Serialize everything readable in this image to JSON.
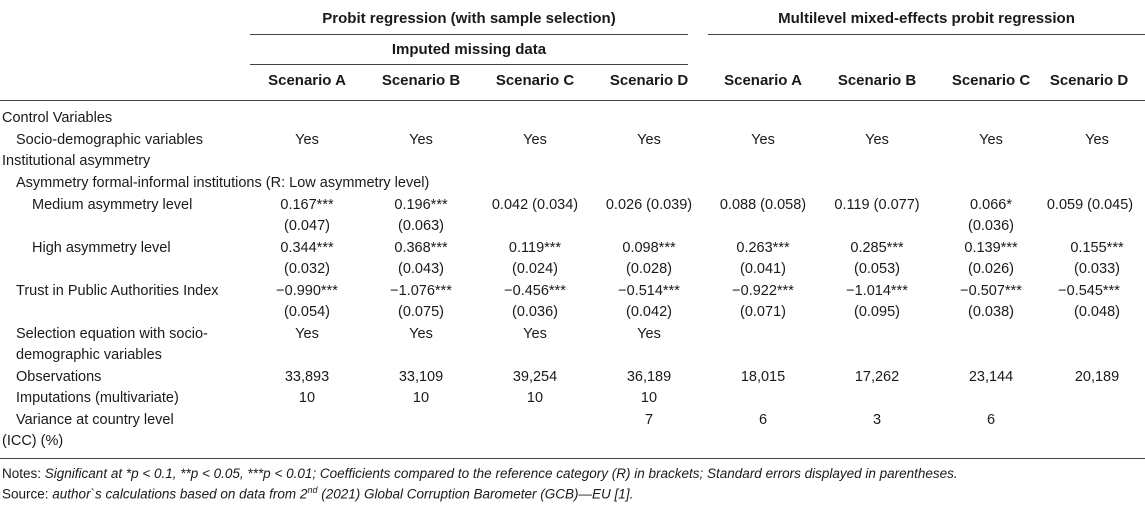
{
  "header": {
    "group1": "Probit regression (with sample selection)",
    "group2": "Multilevel mixed-effects probit regression",
    "subgroup1": "Imputed missing data",
    "scenarios": [
      "Scenario A",
      "Scenario B",
      "Scenario C",
      "Scenario D",
      "Scenario A",
      "Scenario B",
      "Scenario C",
      "Scenario D"
    ]
  },
  "rows": {
    "control_variables": "Control Variables",
    "socio_demo": {
      "label": "Socio-demographic variables",
      "values": [
        "Yes",
        "Yes",
        "Yes",
        "Yes",
        "Yes",
        "Yes",
        "Yes",
        "Yes"
      ]
    },
    "institutional_asymmetry": "Institutional asymmetry",
    "asymmetry_formal": "Asymmetry formal-informal institutions (R: Low asymmetry level)",
    "medium": {
      "label": "Medium asymmetry level",
      "line1": [
        "0.167***",
        "0.196***",
        "0.042 (0.034)",
        "0.026 (0.039)",
        "0.088 (0.058)",
        "0.119 (0.077)",
        "0.066*",
        "0.059 (0.045)"
      ],
      "line2": [
        "(0.047)",
        "(0.063)",
        "",
        "",
        "",
        "",
        "(0.036)",
        ""
      ]
    },
    "high": {
      "label": "High asymmetry level",
      "line1": [
        "0.344***",
        "0.368***",
        "0.119***",
        "0.098***",
        "0.263***",
        "0.285***",
        "0.139***",
        "0.155***"
      ],
      "line2": [
        "(0.032)",
        "(0.043)",
        "(0.024)",
        "(0.028)",
        "(0.041)",
        "(0.053)",
        "(0.026)",
        "(0.033)"
      ]
    },
    "trust": {
      "label": "Trust in Public Authorities Index",
      "line1": [
        "−0.990***",
        "−1.076***",
        "−0.456***",
        "−0.514***",
        "−0.922***",
        "−1.014***",
        "−0.507***",
        "−0.545***"
      ],
      "line2": [
        "(0.054)",
        "(0.075)",
        "(0.036)",
        "(0.042)",
        "(0.071)",
        "(0.095)",
        "(0.038)",
        "(0.048)"
      ]
    },
    "selection": {
      "label_line1": "Selection equation with socio-",
      "label_line2": "demographic variables",
      "values": [
        "Yes",
        "Yes",
        "Yes",
        "Yes",
        "",
        "",
        "",
        ""
      ]
    },
    "observations": {
      "label": "Observations",
      "values": [
        "33,893",
        "33,109",
        "39,254",
        "36,189",
        "18,015",
        "17,262",
        "23,144",
        "20,189"
      ]
    },
    "imputations": {
      "label": "Imputations (multivariate)",
      "values": [
        "10",
        "10",
        "10",
        "10",
        "",
        "",
        "",
        ""
      ]
    },
    "variance": {
      "label_line1": "Variance at country level",
      "label_line2": "(ICC) (%)",
      "values": [
        "",
        "",
        "",
        "7",
        "6",
        "3",
        "6",
        ""
      ]
    }
  },
  "notes": {
    "notes_prefix": "Notes:",
    "notes_text": " Significant at *p < 0.1, **p < 0.05, ***p < 0.01; Coefficients compared to the reference category (R) in brackets; Standard errors displayed in parentheses.",
    "source_prefix": "Source:",
    "source_text_a": " author`s calculations based on data from 2",
    "source_sup": "nd",
    "source_text_b": " (2021) Global Corruption Barometer (GCB)—EU [1]."
  }
}
